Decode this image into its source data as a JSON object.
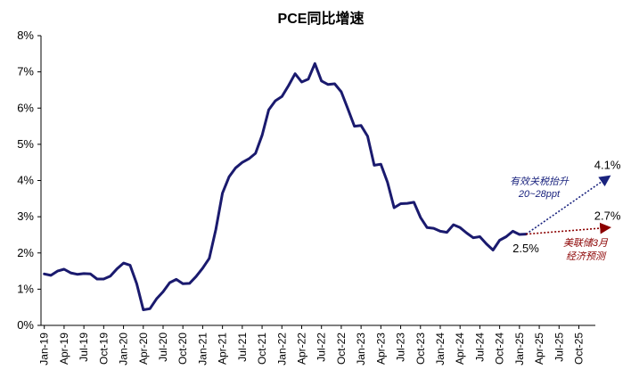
{
  "chart_data": {
    "type": "line",
    "title": "PCE同比增速",
    "ylim": [
      0,
      8
    ],
    "yticks": [
      "0%",
      "1%",
      "2%",
      "3%",
      "4%",
      "5%",
      "6%",
      "7%",
      "8%"
    ],
    "xtick_labels": [
      "Jan-19",
      "Apr-19",
      "Jul-19",
      "Oct-19",
      "Jan-20",
      "Apr-20",
      "Jul-20",
      "Oct-20",
      "Jan-21",
      "Apr-21",
      "Jul-21",
      "Oct-21",
      "Jan-22",
      "Apr-22",
      "Jul-22",
      "Oct-22",
      "Jan-23",
      "Apr-23",
      "Jul-23",
      "Oct-23",
      "Jan-24",
      "Apr-24",
      "Jul-24",
      "Oct-24",
      "Jan-25",
      "Apr-25",
      "Jul-25",
      "Oct-25"
    ],
    "grid": false,
    "line_color": "#1a1a6e",
    "series": [
      {
        "values": [
          1.42,
          1.38,
          1.5,
          1.55,
          1.45,
          1.41,
          1.43,
          1.42,
          1.28,
          1.28,
          1.36,
          1.56,
          1.72,
          1.66,
          1.15,
          0.43,
          0.46,
          0.73,
          0.93,
          1.18,
          1.27,
          1.15,
          1.16,
          1.35,
          1.58,
          1.85,
          2.65,
          3.65,
          4.1,
          4.35,
          4.5,
          4.6,
          4.75,
          5.25,
          5.95,
          6.2,
          6.32,
          6.62,
          6.95,
          6.72,
          6.8,
          7.23,
          6.75,
          6.65,
          6.67,
          6.45,
          5.98,
          5.5,
          5.52,
          5.22,
          4.42,
          4.45,
          3.95,
          3.25,
          3.36,
          3.37,
          3.4,
          2.98,
          2.7,
          2.68,
          2.6,
          2.57,
          2.78,
          2.7,
          2.55,
          2.42,
          2.45,
          2.25,
          2.08,
          2.35,
          2.45,
          2.6,
          2.51,
          2.52
        ]
      }
    ],
    "forecasts": [
      {
        "from_index": 73,
        "to_index": 85.5,
        "from_value": 2.52,
        "to_value": 4.1,
        "color": "#1a237e",
        "label": "4.1%"
      },
      {
        "from_index": 73,
        "to_index": 85.5,
        "from_value": 2.52,
        "to_value": 2.7,
        "color": "#8b0000",
        "label": "2.7%"
      }
    ],
    "annotations": {
      "tariff_line1": "有效关税抬升",
      "tariff_line2": "20~28ppt",
      "fed_line1": "美联储3月",
      "fed_line2": "经济预测",
      "last_value": "2.5%"
    }
  }
}
